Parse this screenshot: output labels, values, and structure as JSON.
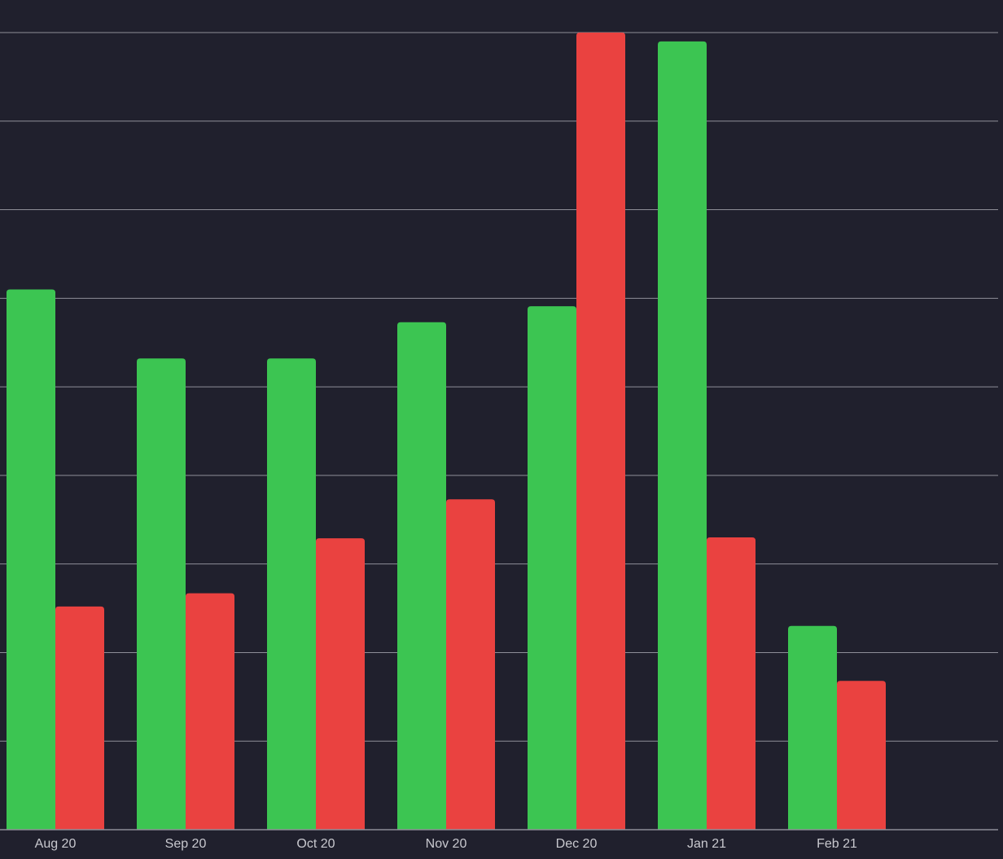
{
  "colors": {
    "background": "#20202d",
    "grid": "#8e8e98",
    "axis": "#8e8e98",
    "tick_label": "#c9c9cf"
  },
  "chart_data": {
    "type": "bar",
    "title": "",
    "xlabel": "",
    "ylabel": "",
    "categories": [
      "Aug 20",
      "Sep 20",
      "Oct 20",
      "Nov 20",
      "Dec 20",
      "Jan 21",
      "Feb 21"
    ],
    "series": [
      {
        "color": "#3cc552",
        "values": [
          6.1,
          5.32,
          5.32,
          5.73,
          5.91,
          8.9,
          2.3
        ]
      },
      {
        "color": "#ea4240",
        "values": [
          2.52,
          2.67,
          3.29,
          3.73,
          9.0,
          3.3,
          1.68
        ]
      }
    ],
    "ylim": [
      0,
      9.0
    ],
    "y_gridlines": [
      1,
      2,
      3,
      4,
      5,
      6,
      7,
      8,
      9
    ],
    "y_tick_labels_visible": false,
    "grid": true,
    "legend": "none"
  }
}
